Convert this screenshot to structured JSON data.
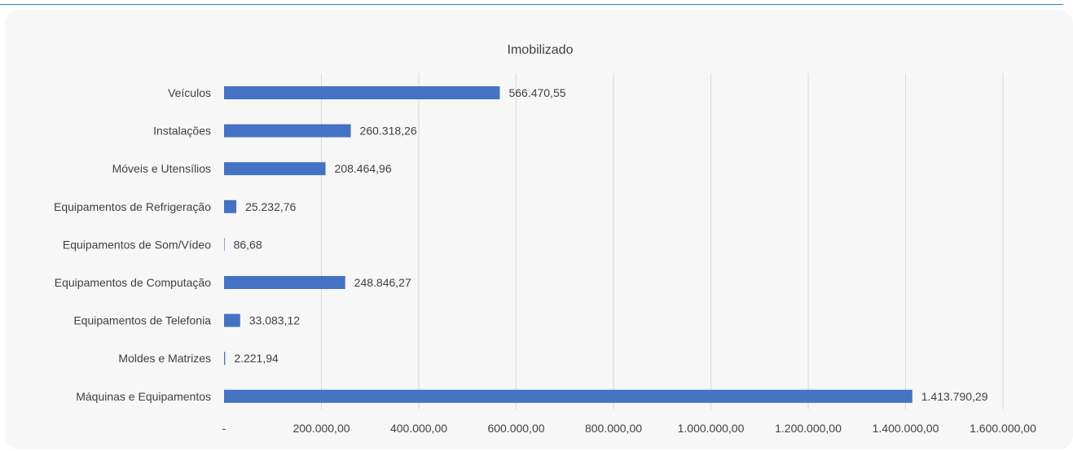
{
  "chart_data": {
    "type": "bar",
    "orientation": "horizontal",
    "title": "Imobilizado",
    "xlabel": "",
    "ylabel": "",
    "categories": [
      "Veículos",
      "Instalações",
      "Móveis e Utensílios",
      "Equipamentos de Refrigeração",
      "Equipamentos de Som/Vídeo",
      "Equipamentos de Computação",
      "Equipamentos de Telefonia",
      "Moldes e Matrizes",
      "Máquinas e Equipamentos"
    ],
    "values": [
      566470.55,
      260318.26,
      208464.96,
      25232.76,
      86.68,
      248846.27,
      33083.12,
      2221.94,
      1413790.29
    ],
    "value_labels": [
      "566.470,55",
      "260.318,26",
      "208.464,96",
      "25.232,76",
      "86,68",
      "248.846,27",
      "33.083,12",
      "2.221,94",
      "1.413.790,29"
    ],
    "xlim": [
      0,
      1600000
    ],
    "xticks": [
      0,
      200000,
      400000,
      600000,
      800000,
      1000000,
      1200000,
      1400000,
      1600000
    ],
    "xtick_labels": [
      "-",
      "200.000,00",
      "400.000,00",
      "600.000,00",
      "800.000,00",
      "1.000.000,00",
      "1.200.000,00",
      "1.400.000,00",
      "1.600.000,00"
    ],
    "grid": "vertical",
    "legend": "none",
    "bar_color": "#4472c4",
    "gridline_color": "#d9d9d9",
    "text_color": "#404040",
    "background_color": "#f7f7f7"
  }
}
